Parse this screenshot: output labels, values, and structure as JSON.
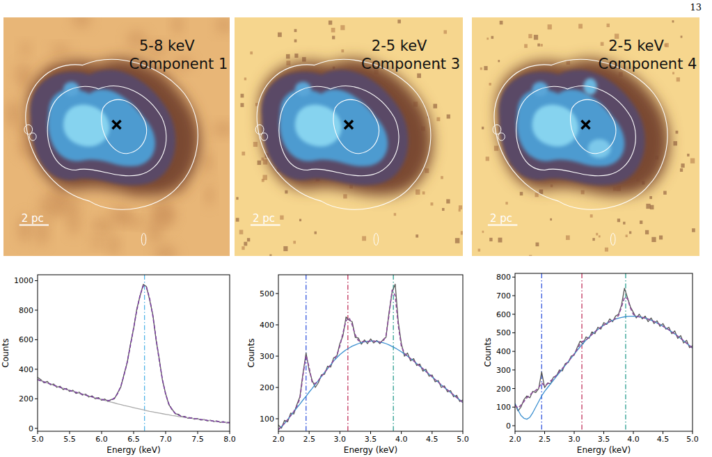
{
  "page_number": "13",
  "images": [
    {
      "band": "5-8 keV",
      "component": "Component 1",
      "scale_bar": "2 pc"
    },
    {
      "band": "2-5 keV",
      "component": "Component 3",
      "scale_bar": "2 pc"
    },
    {
      "band": "2-5 keV",
      "component": "Component 4",
      "scale_bar": "2 pc"
    }
  ],
  "chart_data": [
    {
      "type": "line",
      "x_label": "Energy (keV)",
      "y_label": "Counts",
      "xlim": [
        5,
        8
      ],
      "xticks": [
        {
          "value": 5,
          "label": "5.0"
        },
        5.5,
        {
          "value": 6,
          "label": "6.0"
        },
        6.5,
        {
          "value": 7,
          "label": "7.0"
        },
        7.5,
        {
          "value": 8,
          "label": "8.0"
        }
      ],
      "ylim": [
        -20,
        1040
      ],
      "yticks": [
        0,
        200,
        400,
        600,
        800,
        1000
      ],
      "vlines": [
        {
          "x": 6.67,
          "color": "#4fb3e8",
          "line_style": "dashdot"
        }
      ],
      "x": [
        5,
        5.05,
        5.1,
        5.15,
        5.2,
        5.25,
        5.3,
        5.35,
        5.4,
        5.45,
        5.5,
        5.55,
        5.6,
        5.65,
        5.7,
        5.75,
        5.8,
        5.85,
        5.9,
        5.95,
        6,
        6.05,
        6.1,
        6.15,
        6.2,
        6.25,
        6.3,
        6.35,
        6.4,
        6.45,
        6.5,
        6.55,
        6.6,
        6.65,
        6.7,
        6.75,
        6.8,
        6.85,
        6.9,
        6.95,
        7,
        7.05,
        7.1,
        7.15,
        7.2,
        7.25,
        7.3,
        7.35,
        7.4,
        7.45,
        7.5,
        7.55,
        7.6,
        7.65,
        7.7,
        7.75,
        7.8,
        7.85,
        7.9,
        7.95,
        8
      ],
      "series": [
        {
          "color": "#555555",
          "line_style": "solid",
          "values": [
            345,
            330,
            308,
            318,
            295,
            300,
            278,
            285,
            262,
            270,
            250,
            258,
            236,
            245,
            225,
            232,
            212,
            220,
            200,
            208,
            190,
            198,
            182,
            195,
            200,
            240,
            280,
            365,
            445,
            570,
            675,
            810,
            895,
            975,
            960,
            870,
            770,
            600,
            470,
            325,
            235,
            160,
            130,
            98,
            95,
            78,
            80,
            68,
            72,
            62,
            66,
            56,
            60,
            50,
            55,
            46,
            50,
            40,
            45,
            37,
            40
          ]
        },
        {
          "color": "#aaaaaa",
          "line_style": "solid",
          "values": [
            330,
            322,
            315,
            307,
            300,
            292,
            285,
            278,
            271,
            264,
            257,
            250,
            244,
            237,
            231,
            225,
            219,
            213,
            207,
            201,
            195,
            189,
            183,
            177,
            172,
            166,
            161,
            155,
            150,
            145,
            140,
            135,
            130,
            125,
            120,
            115,
            111,
            107,
            103,
            99,
            95,
            91,
            87,
            84,
            80,
            77,
            74,
            71,
            68,
            65,
            62,
            59,
            57,
            54,
            52,
            49,
            47,
            44,
            42,
            40,
            38
          ]
        },
        {
          "color": "#7b3fa0",
          "line_style": "dashed",
          "values": [
            330,
            322,
            315,
            307,
            300,
            292,
            285,
            278,
            271,
            264,
            257,
            250,
            244,
            237,
            231,
            225,
            219,
            213,
            207,
            201,
            196,
            191,
            188,
            190,
            205,
            235,
            285,
            360,
            450,
            560,
            680,
            800,
            900,
            965,
            955,
            880,
            760,
            610,
            460,
            330,
            230,
            165,
            125,
            102,
            90,
            82,
            77,
            73,
            69,
            66,
            63,
            60,
            57,
            54,
            52,
            49,
            47,
            44,
            42,
            40,
            38
          ]
        }
      ]
    },
    {
      "type": "line",
      "x_label": "Energy (keV)",
      "y_label": "Counts",
      "xlim": [
        2,
        5
      ],
      "xticks": [
        {
          "value": 2,
          "label": "2.0"
        },
        2.5,
        {
          "value": 3,
          "label": "3.0"
        },
        3.5,
        {
          "value": 4,
          "label": "4.0"
        },
        4.5,
        {
          "value": 5,
          "label": "5.0"
        }
      ],
      "ylim": [
        60,
        560
      ],
      "yticks": [
        100,
        200,
        300,
        400,
        500
      ],
      "vlines": [
        {
          "x": 2.45,
          "color": "#3355dd",
          "line_style": "dashdot"
        },
        {
          "x": 3.13,
          "color": "#c0305a",
          "line_style": "dashdot"
        },
        {
          "x": 3.87,
          "color": "#2a9d8f",
          "line_style": "dashdot"
        }
      ],
      "x": [
        2,
        2.05,
        2.1,
        2.15,
        2.2,
        2.25,
        2.3,
        2.35,
        2.4,
        2.45,
        2.5,
        2.55,
        2.6,
        2.65,
        2.7,
        2.75,
        2.8,
        2.85,
        2.9,
        2.95,
        3,
        3.05,
        3.1,
        3.15,
        3.2,
        3.25,
        3.3,
        3.35,
        3.4,
        3.45,
        3.5,
        3.55,
        3.6,
        3.65,
        3.7,
        3.75,
        3.8,
        3.85,
        3.9,
        3.95,
        4,
        4.05,
        4.1,
        4.15,
        4.2,
        4.25,
        4.3,
        4.35,
        4.4,
        4.45,
        4.5,
        4.55,
        4.6,
        4.65,
        4.7,
        4.75,
        4.8,
        4.85,
        4.9,
        4.95,
        5
      ],
      "series": [
        {
          "color": "#555555",
          "line_style": "solid",
          "values": [
            80,
            70,
            95,
            90,
            118,
            115,
            145,
            170,
            245,
            310,
            255,
            222,
            200,
            215,
            240,
            242,
            268,
            265,
            295,
            300,
            340,
            365,
            425,
            415,
            410,
            360,
            358,
            338,
            352,
            340,
            355,
            342,
            350,
            340,
            352,
            360,
            440,
            505,
            530,
            410,
            340,
            300,
            310,
            285,
            292,
            270,
            275,
            252,
            258,
            236,
            240,
            218,
            222,
            200,
            205,
            186,
            190,
            170,
            175,
            155,
            160
          ]
        },
        {
          "color": "#3a8fd0",
          "line_style": "solid",
          "values": [
            65,
            75,
            85,
            97,
            110,
            122,
            135,
            147,
            160,
            172,
            185,
            197,
            210,
            222,
            235,
            248,
            260,
            272,
            285,
            295,
            305,
            313,
            320,
            326,
            332,
            336,
            340,
            343,
            346,
            347,
            348,
            348,
            347,
            345,
            343,
            340,
            336,
            331,
            326,
            320,
            314,
            307,
            300,
            292,
            285,
            276,
            268,
            260,
            251,
            243,
            234,
            225,
            217,
            208,
            200,
            192,
            184,
            176,
            168,
            160,
            152
          ]
        },
        {
          "color": "#8a4a9a",
          "line_style": "dashed",
          "values": [
            65,
            75,
            85,
            97,
            110,
            123,
            140,
            165,
            239,
            302,
            264,
            215,
            212,
            222,
            235,
            248,
            260,
            272,
            287,
            303,
            332,
            374,
            413,
            423,
            400,
            368,
            350,
            346,
            346,
            347,
            348,
            348,
            347,
            345,
            346,
            366,
            432,
            511,
            493,
            398,
            332,
            309,
            300,
            292,
            285,
            276,
            268,
            260,
            251,
            243,
            234,
            225,
            217,
            208,
            200,
            192,
            184,
            176,
            168,
            160,
            152
          ]
        }
      ]
    },
    {
      "type": "line",
      "x_label": "Energy (keV)",
      "y_label": "Counts",
      "xlim": [
        2,
        5
      ],
      "xticks": [
        {
          "value": 2,
          "label": "2.0"
        },
        2.5,
        {
          "value": 3,
          "label": "3.0"
        },
        3.5,
        {
          "value": 4,
          "label": "4.0"
        },
        4.5,
        {
          "value": 5,
          "label": "5.0"
        }
      ],
      "ylim": [
        -30,
        820
      ],
      "yticks": [
        0,
        100,
        200,
        300,
        400,
        500,
        600,
        700,
        800
      ],
      "vlines": [
        {
          "x": 2.45,
          "color": "#3355dd",
          "line_style": "dashdot"
        },
        {
          "x": 3.13,
          "color": "#c0305a",
          "line_style": "dashdot"
        },
        {
          "x": 3.87,
          "color": "#2a9d8f",
          "line_style": "dashdot"
        }
      ],
      "x": [
        2,
        2.05,
        2.1,
        2.15,
        2.2,
        2.25,
        2.3,
        2.35,
        2.4,
        2.45,
        2.5,
        2.55,
        2.6,
        2.65,
        2.7,
        2.75,
        2.8,
        2.85,
        2.9,
        2.95,
        3,
        3.05,
        3.1,
        3.15,
        3.2,
        3.25,
        3.3,
        3.35,
        3.4,
        3.45,
        3.5,
        3.55,
        3.6,
        3.65,
        3.7,
        3.75,
        3.8,
        3.85,
        3.9,
        3.95,
        4,
        4.05,
        4.1,
        4.15,
        4.2,
        4.25,
        4.3,
        4.35,
        4.4,
        4.45,
        4.5,
        4.55,
        4.6,
        4.65,
        4.7,
        4.75,
        4.8,
        4.85,
        4.9,
        4.95,
        5
      ],
      "series": [
        {
          "color": "#555555",
          "line_style": "solid",
          "values": [
            115,
            80,
            100,
            140,
            160,
            150,
            185,
            178,
            200,
            290,
            205,
            230,
            225,
            262,
            268,
            300,
            295,
            335,
            340,
            375,
            380,
            420,
            455,
            440,
            478,
            470,
            505,
            495,
            530,
            520,
            555,
            545,
            575,
            560,
            590,
            600,
            650,
            740,
            690,
            640,
            610,
            580,
            600,
            575,
            590,
            560,
            580,
            550,
            565,
            535,
            550,
            520,
            530,
            495,
            510,
            470,
            485,
            445,
            460,
            420,
            430
          ]
        },
        {
          "color": "#3a8fd0",
          "line_style": "solid",
          "values": [
            120,
            85,
            55,
            40,
            35,
            45,
            70,
            100,
            130,
            160,
            185,
            205,
            225,
            245,
            265,
            285,
            305,
            325,
            345,
            365,
            385,
            405,
            425,
            443,
            460,
            476,
            491,
            505,
            518,
            530,
            541,
            551,
            560,
            567,
            574,
            579,
            583,
            586,
            588,
            589,
            589,
            588,
            586,
            583,
            579,
            574,
            568,
            561,
            553,
            545,
            536,
            526,
            516,
            505,
            494,
            482,
            470,
            457,
            444,
            431,
            418
          ]
        },
        {
          "color": "#8a4a9a",
          "line_style": "dashed",
          "values": [
            110,
            95,
            110,
            130,
            150,
            165,
            180,
            190,
            205,
            230,
            215,
            225,
            240,
            255,
            272,
            290,
            308,
            327,
            346,
            366,
            386,
            410,
            440,
            455,
            462,
            476,
            491,
            505,
            518,
            530,
            541,
            551,
            560,
            567,
            576,
            594,
            639,
            691,
            685,
            634,
            599,
            589,
            586,
            583,
            579,
            574,
            568,
            561,
            553,
            545,
            536,
            526,
            516,
            505,
            494,
            482,
            470,
            457,
            444,
            431,
            418
          ]
        }
      ]
    }
  ]
}
